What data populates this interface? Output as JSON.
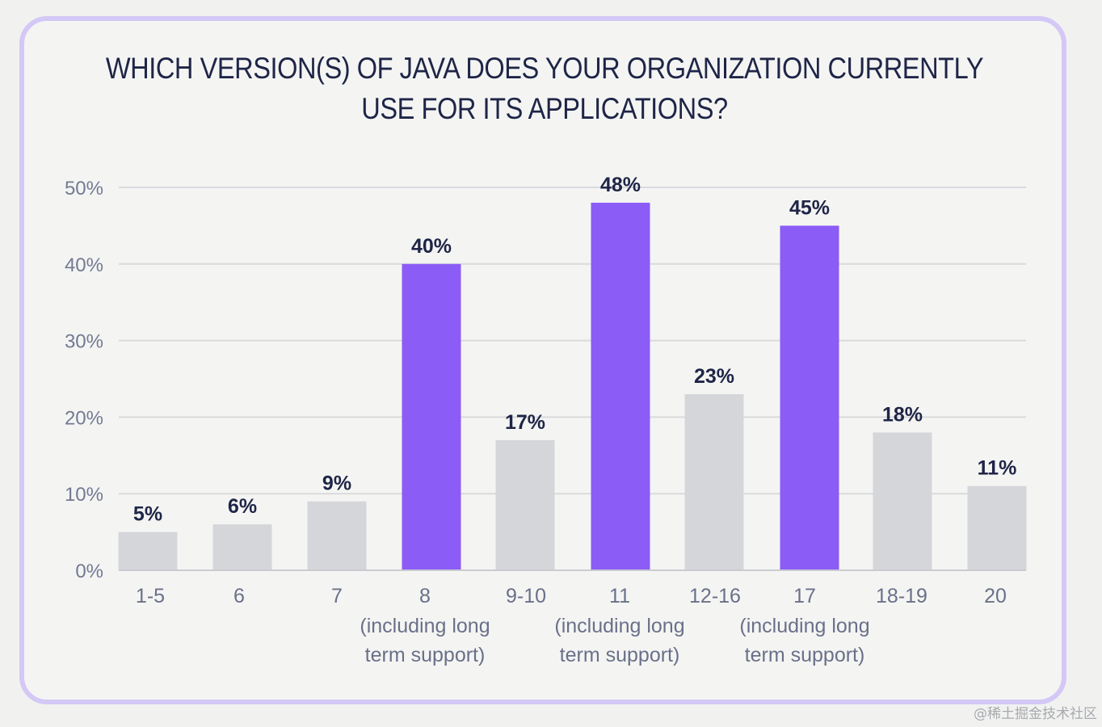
{
  "chart_data": {
    "type": "bar",
    "title": "WHICH VERSION(S) OF JAVA DOES YOUR ORGANIZATION CURRENTLY USE FOR ITS APPLICATIONS?",
    "title_lines": [
      "WHICH VERSION(S) OF JAVA DOES YOUR ORGANIZATION CURRENTLY",
      "USE FOR ITS APPLICATIONS?"
    ],
    "categories": [
      "1-5",
      "6",
      "7",
      "8",
      "9-10",
      "11",
      "12-16",
      "17",
      "18-19",
      "20"
    ],
    "category_sublabels": [
      "",
      "",
      "",
      "(including long term support)",
      "",
      "(including long term support)",
      "",
      "(including long term support)",
      "",
      ""
    ],
    "category_sublabel_lines": [
      "(including long",
      "term support)"
    ],
    "values": [
      5,
      6,
      9,
      40,
      17,
      48,
      23,
      45,
      18,
      11
    ],
    "value_labels": [
      "5%",
      "6%",
      "9%",
      "40%",
      "17%",
      "48%",
      "23%",
      "45%",
      "18%",
      "11%"
    ],
    "highlighted": [
      false,
      false,
      false,
      true,
      false,
      true,
      false,
      true,
      false,
      false
    ],
    "ylim": [
      0,
      50
    ],
    "yticks": [
      0,
      10,
      20,
      30,
      40,
      50
    ],
    "ytick_labels": [
      "0%",
      "10%",
      "20%",
      "30%",
      "40%",
      "50%"
    ],
    "xlabel": "",
    "ylabel": "",
    "grid": true,
    "colors": {
      "highlight": "#8b5cf6",
      "default": "#d4d6da",
      "grid": "#d9dadc",
      "frame": "#d3c8f6",
      "title": "#1f2547"
    }
  },
  "watermark": "@稀土掘金技术社区"
}
